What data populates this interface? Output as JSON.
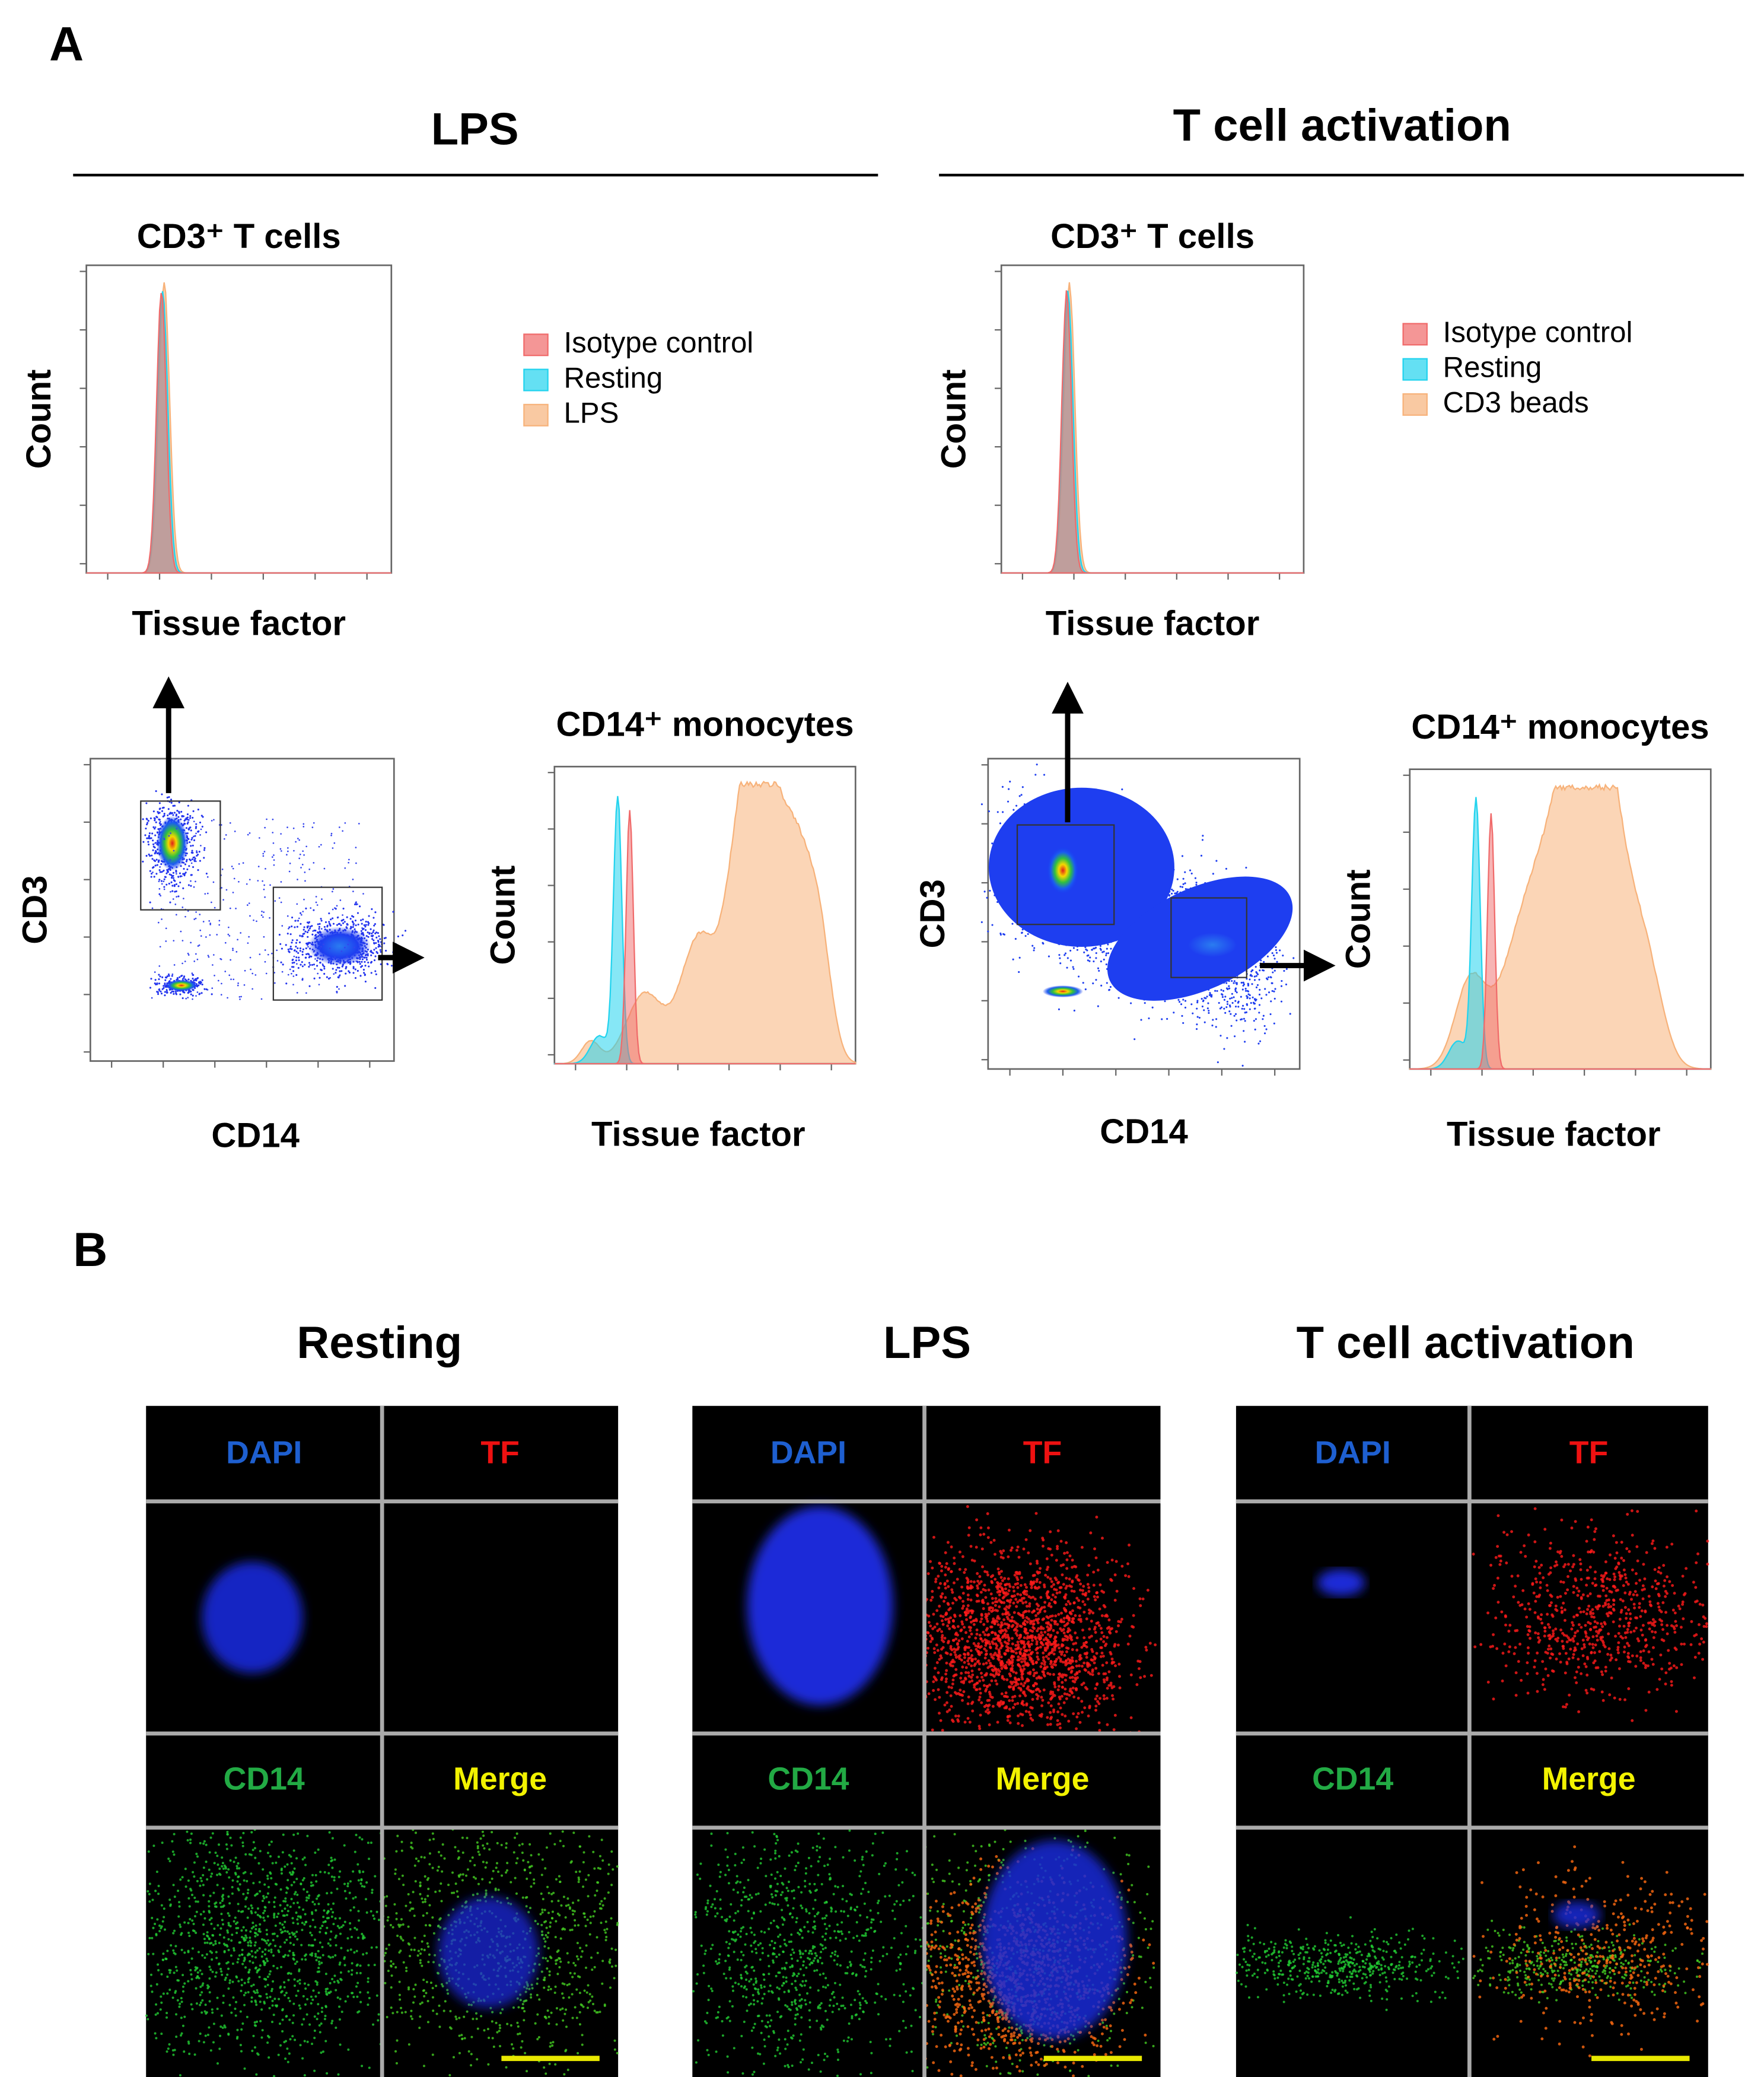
{
  "panel_a": {
    "label": "A",
    "groups": [
      {
        "title": "LPS",
        "top_plot": {
          "title": "CD3⁺ T cells",
          "x_label": "Tissue factor",
          "y_label": "Count"
        },
        "legend": [
          {
            "name": "Isotype control",
            "color": "#f06a6a"
          },
          {
            "name": "Resting",
            "color": "#22d3ee"
          },
          {
            "name": "LPS",
            "color": "#f7b27a"
          }
        ],
        "scatter": {
          "x_label": "CD14",
          "y_label": "CD3"
        },
        "bottom_plot": {
          "title": "CD14⁺ monocytes",
          "x_label": "Tissue factor",
          "y_label": "Count"
        }
      },
      {
        "title": "T cell activation",
        "top_plot": {
          "title": "CD3⁺ T cells",
          "x_label": "Tissue factor",
          "y_label": "Count"
        },
        "legend": [
          {
            "name": "Isotype control",
            "color": "#f06a6a"
          },
          {
            "name": "Resting",
            "color": "#22d3ee"
          },
          {
            "name": "CD3 beads",
            "color": "#f7b27a"
          }
        ],
        "scatter": {
          "x_label": "CD14",
          "y_label": "CD3"
        },
        "bottom_plot": {
          "title": "CD14⁺ monocytes",
          "x_label": "Tissue factor",
          "y_label": "Count"
        }
      }
    ]
  },
  "panel_b": {
    "label": "B",
    "groups": [
      {
        "title": "Resting",
        "channels": [
          "DAPI",
          "TF",
          "CD14",
          "Merge"
        ]
      },
      {
        "title": "LPS",
        "channels": [
          "DAPI",
          "TF",
          "CD14",
          "Merge"
        ]
      },
      {
        "title": "T cell activation",
        "channels": [
          "DAPI",
          "TF",
          "CD14",
          "Merge"
        ]
      }
    ]
  }
}
